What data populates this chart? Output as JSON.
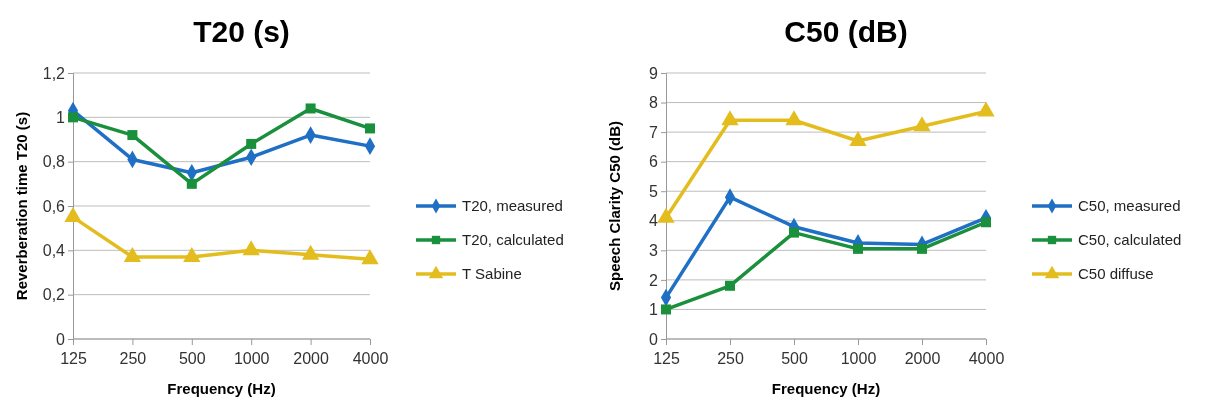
{
  "chart_data": [
    {
      "type": "line",
      "title": "T20 (s)",
      "xlabel": "Frequency (Hz)",
      "ylabel": "Reverberation time T20 (s)",
      "categories": [
        "125",
        "250",
        "500",
        "1000",
        "2000",
        "4000"
      ],
      "ylim": [
        0,
        1.2
      ],
      "yticks": [
        0,
        {
          "value": 0.2,
          "label": "0,2"
        },
        {
          "value": 0.4,
          "label": "0,4"
        },
        {
          "value": 0.6,
          "label": "0,6"
        },
        {
          "value": 0.8,
          "label": "0,8"
        },
        1,
        {
          "value": 1.2,
          "label": "1,2"
        }
      ],
      "grid": "y",
      "legend": "right",
      "series": [
        {
          "name": "T20, measured",
          "color": "#1f6fc5",
          "marker": "diamond",
          "values": [
            1.03,
            0.81,
            0.75,
            0.82,
            0.92,
            0.87
          ]
        },
        {
          "name": "T20, calculated",
          "color": "#1a8f3c",
          "marker": "square",
          "values": [
            1.0,
            0.92,
            0.7,
            0.88,
            1.04,
            0.95
          ]
        },
        {
          "name": "T Sabine",
          "color": "#e3bd1e",
          "marker": "triangle",
          "values": [
            0.55,
            0.37,
            0.37,
            0.4,
            0.38,
            0.36
          ]
        }
      ]
    },
    {
      "type": "line",
      "title": "C50 (dB)",
      "xlabel": "Frequency (Hz)",
      "ylabel": "Speech Clarity  C50 (dB)",
      "categories": [
        "125",
        "250",
        "500",
        "1000",
        "2000",
        "4000"
      ],
      "ylim": [
        0,
        9
      ],
      "yticks": [
        0,
        1,
        2,
        3,
        4,
        5,
        6,
        7,
        8,
        9
      ],
      "grid": "y",
      "legend": "right",
      "series": [
        {
          "name": "C50, measured",
          "color": "#1f6fc5",
          "marker": "diamond",
          "values": [
            1.4,
            4.8,
            3.8,
            3.25,
            3.2,
            4.1
          ]
        },
        {
          "name": "C50, calculated",
          "color": "#1a8f3c",
          "marker": "square",
          "values": [
            1.0,
            1.8,
            3.6,
            3.05,
            3.05,
            3.95
          ]
        },
        {
          "name": "C50 diffuse",
          "color": "#e3bd1e",
          "marker": "triangle",
          "values": [
            4.1,
            7.4,
            7.4,
            6.7,
            7.2,
            7.7
          ]
        }
      ]
    }
  ]
}
